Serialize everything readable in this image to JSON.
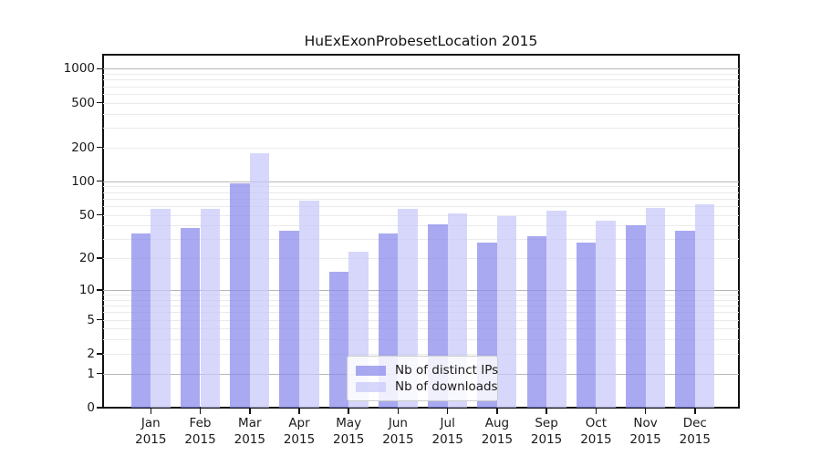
{
  "chart_data": {
    "type": "bar",
    "title": "HuExExonProbesetLocation 2015",
    "categories": [
      "Jan 2015",
      "Feb 2015",
      "Mar 2015",
      "Apr 2015",
      "May 2015",
      "Jun 2015",
      "Jul 2015",
      "Aug 2015",
      "Sep 2015",
      "Oct 2015",
      "Nov 2015",
      "Dec 2015"
    ],
    "x_tick_top": [
      "Jan",
      "Feb",
      "Mar",
      "Apr",
      "May",
      "Jun",
      "Jul",
      "Aug",
      "Sep",
      "Oct",
      "Nov",
      "Dec"
    ],
    "x_tick_bottom": [
      "2015",
      "2015",
      "2015",
      "2015",
      "2015",
      "2015",
      "2015",
      "2015",
      "2015",
      "2015",
      "2015",
      "2015"
    ],
    "series": [
      {
        "name": "Nb of distinct IPs",
        "color": "#8888ec",
        "opacity": 0.72,
        "values": [
          34,
          38,
          96,
          36,
          15,
          34,
          41,
          28,
          32,
          28,
          40,
          36
        ]
      },
      {
        "name": "Nb of downloads",
        "color": "#c8c8f9",
        "opacity": 0.72,
        "values": [
          57,
          57,
          178,
          67,
          23,
          57,
          51,
          49,
          54,
          44,
          58,
          62
        ]
      }
    ],
    "y_scale": "log1p",
    "y_ticks": [
      0,
      1,
      2,
      5,
      10,
      20,
      50,
      100,
      200,
      500,
      1000
    ],
    "ylim": [
      0,
      1300
    ],
    "grid": true,
    "legend_position": "lower center",
    "colors": {
      "major_grid": "#b8b8b8",
      "minor_grid": "#eaeaea",
      "axis": "#111111",
      "text": "#1a1a1a"
    }
  }
}
